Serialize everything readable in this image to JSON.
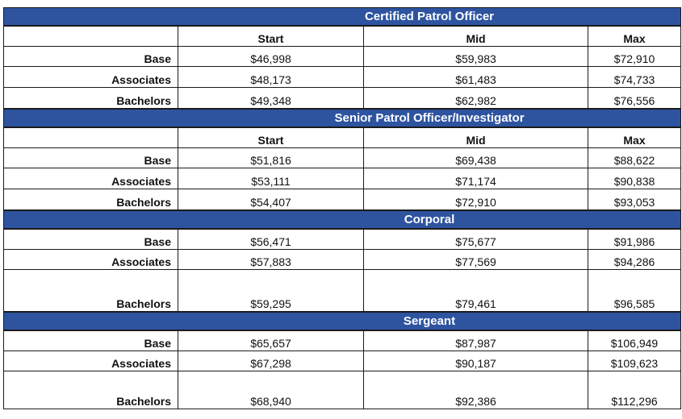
{
  "column_headers": [
    "Start",
    "Mid",
    "Max"
  ],
  "sections": [
    {
      "title": "Certified Patrol Officer",
      "rows": [
        {
          "label": "Base",
          "start": "$46,998",
          "mid": "$59,983",
          "max": "$72,910"
        },
        {
          "label": "Associates",
          "start": "$48,173",
          "mid": "$61,483",
          "max": "$74,733"
        },
        {
          "label": "Bachelors",
          "start": "$49,348",
          "mid": "$62,982",
          "max": "$76,556"
        }
      ]
    },
    {
      "title": "Senior Patrol Officer/Investigator",
      "rows": [
        {
          "label": "Base",
          "start": "$51,816",
          "mid": "$69,438",
          "max": "$88,622"
        },
        {
          "label": "Associates",
          "start": "$53,111",
          "mid": "$71,174",
          "max": "$90,838"
        },
        {
          "label": "Bachelors",
          "start": "$54,407",
          "mid": "$72,910",
          "max": "$93,053"
        }
      ]
    },
    {
      "title": "Corporal",
      "rows": [
        {
          "label": "Base",
          "start": "$56,471",
          "mid": "$75,677",
          "max": "$91,986"
        },
        {
          "label": "Associates",
          "start": "$57,883",
          "mid": "$77,569",
          "max": "$94,286"
        },
        {
          "label": "Bachelors",
          "start": "$59,295",
          "mid": "$79,461",
          "max": "$96,585"
        }
      ]
    },
    {
      "title": "Sergeant",
      "rows": [
        {
          "label": "Base",
          "start": "$65,657",
          "mid": "$87,987",
          "max": "$106,949"
        },
        {
          "label": "Associates",
          "start": "$67,298",
          "mid": "$90,187",
          "max": "$109,623"
        },
        {
          "label": "Bachelors",
          "start": "$68,940",
          "mid": "$92,386",
          "max": "$112,296"
        }
      ]
    }
  ],
  "colors": {
    "header_bg": "#2e54a0",
    "header_text": "#ffffff",
    "border": "#1a1a1a"
  }
}
